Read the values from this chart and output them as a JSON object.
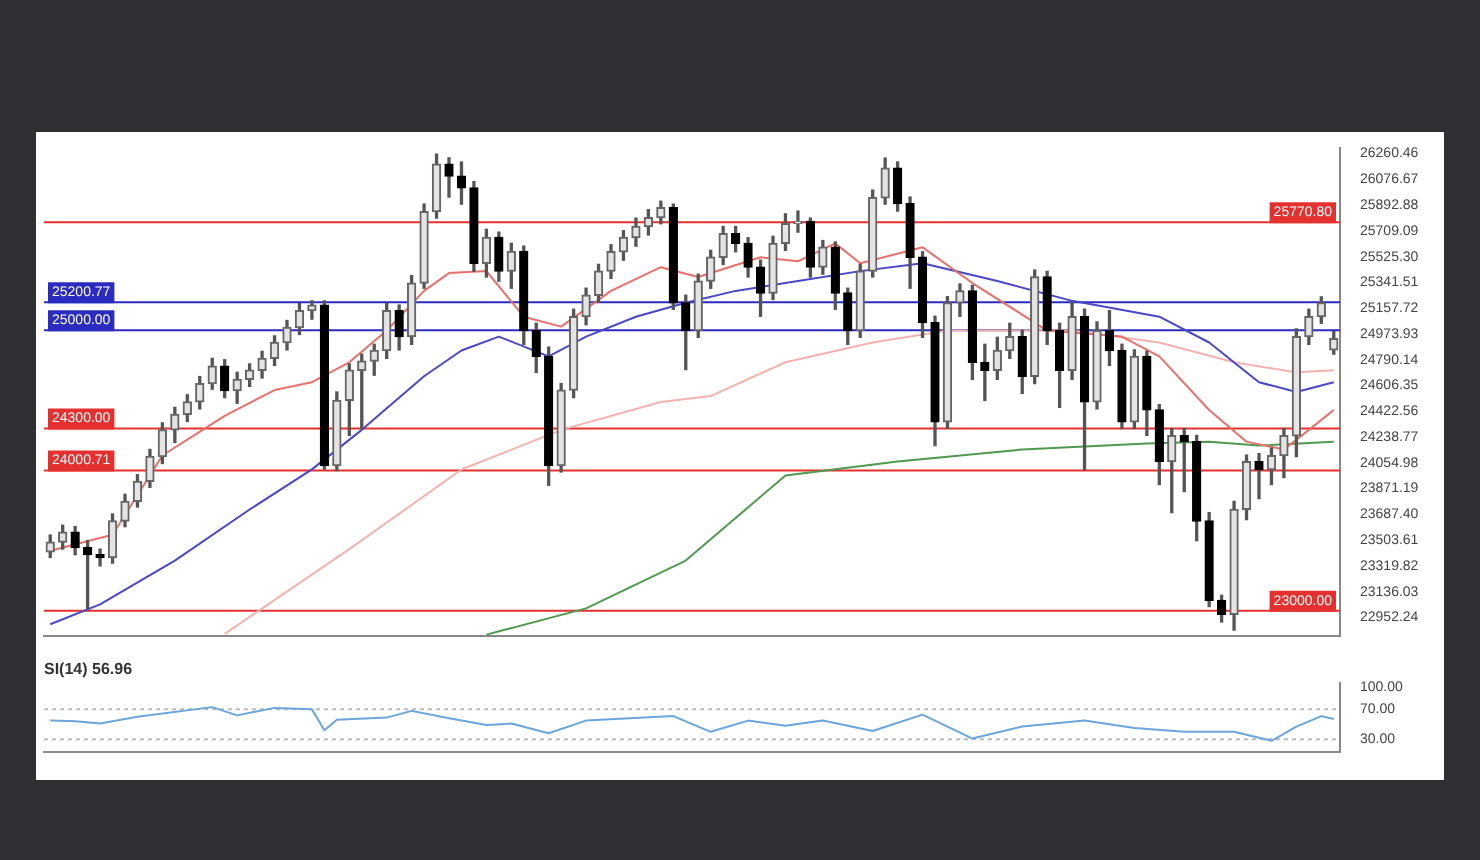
{
  "chart_data": [
    {
      "type": "candlestick",
      "categories": [
        null,
        null,
        null,
        null,
        null,
        null,
        null,
        null,
        null,
        null,
        null,
        null,
        null,
        null,
        null,
        null,
        null,
        null,
        null,
        null,
        null,
        null,
        null,
        null,
        null,
        null,
        null,
        null,
        null,
        null,
        null,
        null,
        null,
        null,
        null,
        null,
        null,
        null,
        null,
        null,
        null,
        null,
        null,
        null,
        null,
        null,
        null,
        null,
        null,
        null,
        null,
        null,
        null,
        null,
        null,
        null,
        null,
        null,
        null,
        null,
        null,
        null,
        null,
        null,
        null,
        null,
        null,
        null,
        null,
        null,
        null,
        null,
        null,
        null,
        null,
        null,
        null,
        null,
        null,
        null,
        null,
        null,
        null,
        null,
        null,
        null,
        null,
        null,
        null,
        null,
        null,
        null,
        null,
        null,
        null,
        null,
        null,
        null,
        null,
        null,
        null,
        null,
        null,
        null
      ],
      "ohlc": [
        [
          23420,
          23540,
          23380,
          23490
        ],
        [
          23490,
          23610,
          23440,
          23560
        ],
        [
          23560,
          23600,
          23400,
          23450
        ],
        [
          23450,
          23500,
          23017,
          23400
        ],
        [
          23400,
          23440,
          23320,
          23380
        ],
        [
          23380,
          23690,
          23340,
          23640
        ],
        [
          23640,
          23830,
          23600,
          23780
        ],
        [
          23780,
          23970,
          23740,
          23923
        ],
        [
          23923,
          24150,
          23880,
          24100
        ],
        [
          24100,
          24340,
          24050,
          24290
        ],
        [
          24290,
          24450,
          24200,
          24400
        ],
        [
          24400,
          24540,
          24350,
          24490
        ],
        [
          24490,
          24670,
          24440,
          24620
        ],
        [
          24620,
          24800,
          24580,
          24745
        ],
        [
          24745,
          24790,
          24520,
          24570
        ],
        [
          24570,
          24700,
          24480,
          24650
        ],
        [
          24650,
          24760,
          24600,
          24715
        ],
        [
          24715,
          24850,
          24660,
          24800
        ],
        [
          24800,
          24960,
          24750,
          24913
        ],
        [
          24913,
          25070,
          24860,
          25020
        ],
        [
          25020,
          25190,
          24970,
          25140
        ],
        [
          25140,
          25210,
          25080,
          25180
        ],
        [
          25180,
          25210,
          24010,
          24036
        ],
        [
          24036,
          24560,
          24000,
          24500
        ],
        [
          24500,
          24760,
          24250,
          24715
        ],
        [
          24715,
          24830,
          24300,
          24780
        ],
        [
          24780,
          24900,
          24680,
          24856
        ],
        [
          24856,
          25190,
          24800,
          25140
        ],
        [
          25140,
          25180,
          24860,
          24955
        ],
        [
          24955,
          25390,
          24900,
          25337
        ],
        [
          25337,
          25900,
          25300,
          25846
        ],
        [
          25846,
          26256,
          25800,
          26185
        ],
        [
          26185,
          26230,
          25950,
          26100
        ],
        [
          26100,
          26200,
          25900,
          26016
        ],
        [
          26016,
          26060,
          25420,
          25478
        ],
        [
          25478,
          25720,
          25380,
          25662
        ],
        [
          25662,
          25700,
          25350,
          25422
        ],
        [
          25422,
          25620,
          25300,
          25563
        ],
        [
          25563,
          25600,
          24900,
          24998
        ],
        [
          24998,
          25050,
          24700,
          24814
        ],
        [
          24814,
          24880,
          23895,
          24036
        ],
        [
          24036,
          24620,
          23990,
          24574
        ],
        [
          24574,
          25150,
          24520,
          25097
        ],
        [
          25097,
          25300,
          25040,
          25250
        ],
        [
          25250,
          25470,
          25200,
          25422
        ],
        [
          25422,
          25610,
          25370,
          25560
        ],
        [
          25560,
          25710,
          25500,
          25662
        ],
        [
          25662,
          25800,
          25600,
          25740
        ],
        [
          25740,
          25860,
          25680,
          25804
        ],
        [
          25804,
          25920,
          25760,
          25875
        ],
        [
          25875,
          25900,
          25150,
          25196
        ],
        [
          25196,
          25250,
          24720,
          24998
        ],
        [
          24998,
          25400,
          24950,
          25351
        ],
        [
          25351,
          25570,
          25300,
          25521
        ],
        [
          25521,
          25740,
          25470,
          25690
        ],
        [
          25690,
          25740,
          25560,
          25620
        ],
        [
          25620,
          25660,
          25380,
          25450
        ],
        [
          25450,
          25500,
          25100,
          25266
        ],
        [
          25266,
          25670,
          25220,
          25620
        ],
        [
          25620,
          25830,
          25570,
          25761
        ],
        [
          25761,
          25850,
          25700,
          25776
        ],
        [
          25776,
          25800,
          25380,
          25450
        ],
        [
          25450,
          25640,
          25400,
          25592
        ],
        [
          25592,
          25630,
          25150,
          25266
        ],
        [
          25266,
          25300,
          24900,
          24998
        ],
        [
          24998,
          25470,
          24950,
          25422
        ],
        [
          25422,
          26000,
          25380,
          25945
        ],
        [
          25945,
          26228,
          25900,
          26157
        ],
        [
          26157,
          26200,
          25850,
          25903
        ],
        [
          25903,
          25950,
          25300,
          25521
        ],
        [
          25521,
          25560,
          24950,
          25055
        ],
        [
          25055,
          25100,
          24178,
          24347
        ],
        [
          24347,
          25240,
          24300,
          25196
        ],
        [
          25196,
          25330,
          25100,
          25281
        ],
        [
          25281,
          25320,
          24650,
          24771
        ],
        [
          24771,
          24900,
          24500,
          24715
        ],
        [
          24715,
          24950,
          24650,
          24856
        ],
        [
          24856,
          25050,
          24800,
          24955
        ],
        [
          24955,
          25000,
          24550,
          24672
        ],
        [
          24672,
          25430,
          24620,
          25380
        ],
        [
          25380,
          25420,
          24900,
          24998
        ],
        [
          24998,
          25050,
          24450,
          24715
        ],
        [
          24715,
          25200,
          24650,
          25097
        ],
        [
          25097,
          25150,
          24007,
          24489
        ],
        [
          24489,
          25060,
          24440,
          24998
        ],
        [
          24998,
          25140,
          24750,
          24856
        ],
        [
          24856,
          24900,
          24300,
          24347
        ],
        [
          24347,
          24860,
          24300,
          24814
        ],
        [
          24814,
          24850,
          24250,
          24432
        ],
        [
          24432,
          24470,
          23900,
          24064
        ],
        [
          24064,
          24300,
          23700,
          24248
        ],
        [
          24248,
          24300,
          23850,
          24206
        ],
        [
          24206,
          24250,
          23500,
          23640
        ],
        [
          23640,
          23700,
          23030,
          23074
        ],
        [
          23074,
          23110,
          22920,
          22975
        ],
        [
          22975,
          23780,
          22862,
          23723
        ],
        [
          23723,
          24110,
          23650,
          24064
        ],
        [
          24064,
          24120,
          23800,
          24007
        ],
        [
          24007,
          24160,
          23900,
          24106
        ],
        [
          24106,
          24300,
          23950,
          24248
        ],
        [
          24248,
          25010,
          24100,
          24955
        ],
        [
          24955,
          25150,
          24900,
          25097
        ],
        [
          25097,
          25238,
          25050,
          25196
        ],
        [
          24860,
          24990,
          24830,
          24940
        ]
      ],
      "series": [
        {
          "type": "line",
          "color": "#e8706a",
          "values": [
            23428,
            null,
            null,
            null,
            null,
            23542,
            null,
            null,
            null,
            24107,
            null,
            null,
            null,
            null,
            24390,
            null,
            null,
            null,
            24574,
            null,
            null,
            24630,
            null,
            null,
            24772,
            null,
            null,
            24998,
            null,
            null,
            25281,
            null,
            25408,
            null,
            null,
            25422,
            null,
            null,
            25097,
            null,
            null,
            25026,
            null,
            null,
            null,
            25281,
            null,
            null,
            null,
            25450,
            null,
            null,
            25380,
            null,
            null,
            null,
            null,
            25521,
            null,
            null,
            25492,
            null,
            null,
            25620,
            null,
            25478,
            null,
            null,
            null,
            null,
            25592,
            null,
            null,
            null,
            25337,
            null,
            null,
            null,
            null,
            null,
            24998,
            null,
            null,
            null,
            null,
            null,
            24955,
            null,
            null,
            24814,
            null,
            null,
            null,
            24432,
            null,
            null,
            24206,
            null,
            null,
            24150,
            null,
            24290,
            null,
            24432
          ]
        },
        {
          "type": "line",
          "color": "#4848c8",
          "values": [
            22904,
            null,
            null,
            null,
            23046,
            null,
            null,
            null,
            null,
            null,
            23358,
            null,
            null,
            null,
            null,
            null,
            23722,
            null,
            null,
            null,
            null,
            24008,
            null,
            null,
            null,
            24290,
            null,
            null,
            null,
            null,
            24672,
            null,
            null,
            24856,
            null,
            null,
            24955,
            null,
            null,
            null,
            24814,
            null,
            null,
            24955,
            null,
            null,
            null,
            25097,
            null,
            null,
            null,
            25196,
            null,
            null,
            null,
            25281,
            null,
            null,
            null,
            null,
            25351,
            null,
            null,
            null,
            null,
            25422,
            null,
            null,
            null,
            null,
            25478,
            null,
            null,
            null,
            null,
            null,
            25351,
            null,
            null,
            null,
            null,
            null,
            25210,
            null,
            null,
            null,
            null,
            null,
            null,
            25097,
            null,
            null,
            null,
            24913,
            null,
            null,
            null,
            24630,
            null,
            null,
            24560,
            null,
            null,
            24630
          ]
        },
        {
          "type": "line",
          "color": "#f2b3ad",
          "values": [
            null,
            null,
            null,
            null,
            null,
            null,
            null,
            null,
            null,
            null,
            null,
            null,
            null,
            null,
            22835,
            null,
            null,
            null,
            null,
            null,
            null,
            null,
            null,
            null,
            23440,
            null,
            null,
            null,
            null,
            null,
            null,
            null,
            null,
            24007,
            null,
            null,
            null,
            null,
            null,
            null,
            null,
            24290,
            null,
            null,
            null,
            null,
            null,
            null,
            null,
            24489,
            null,
            null,
            null,
            24531,
            null,
            null,
            null,
            null,
            null,
            24772,
            null,
            null,
            null,
            null,
            null,
            null,
            24913,
            null,
            null,
            null,
            null,
            null,
            24998,
            null,
            null,
            null,
            null,
            null,
            null,
            null,
            null,
            null,
            24998,
            null,
            null,
            null,
            null,
            null,
            null,
            24913,
            null,
            null,
            null,
            null,
            null,
            24772,
            null,
            null,
            null,
            null,
            24700,
            null,
            null,
            24715
          ]
        },
        {
          "type": "line",
          "color": "#4f9a4f",
          "values": [
            null,
            null,
            null,
            null,
            null,
            null,
            null,
            null,
            null,
            null,
            null,
            null,
            null,
            null,
            null,
            null,
            null,
            null,
            null,
            null,
            null,
            null,
            null,
            null,
            null,
            null,
            null,
            null,
            null,
            null,
            null,
            null,
            null,
            null,
            null,
            22830,
            null,
            null,
            null,
            null,
            null,
            null,
            null,
            23017,
            null,
            null,
            null,
            null,
            null,
            null,
            null,
            23358,
            null,
            null,
            null,
            null,
            null,
            null,
            null,
            23965,
            null,
            null,
            null,
            null,
            null,
            null,
            null,
            null,
            24064,
            null,
            null,
            null,
            null,
            null,
            null,
            null,
            null,
            null,
            24150,
            null,
            null,
            null,
            null,
            null,
            null,
            null,
            null,
            null,
            24192,
            null,
            null,
            null,
            null,
            24206,
            null,
            null,
            null,
            24178,
            null,
            null,
            null,
            null,
            null,
            24206
          ]
        }
      ],
      "ylim": [
        22820,
        26300
      ],
      "yticks": [
        26260.46,
        26076.67,
        25892.88,
        25709.09,
        {
          "value": 25525.3,
          "label": "25525.30"
        },
        25341.51,
        25157.72,
        24973.93,
        24790.14,
        24606.35,
        24422.56,
        24238.77,
        24054.98,
        23871.19,
        {
          "value": 23687.4,
          "label": "23687.40"
        },
        23503.61,
        23319.82,
        23136.03,
        22952.24
      ],
      "ref_lines": [
        {
          "axis": "y",
          "value": 25770.8,
          "label": "25770.80",
          "color": "#e53030"
        },
        {
          "axis": "y",
          "value": 25200.77,
          "label": "25200.77",
          "color": "#2b2bc0"
        },
        {
          "axis": "y",
          "value": 25000,
          "label": "25000.00",
          "color": "#2b2bc0"
        },
        {
          "axis": "y",
          "value": 24300,
          "label": "24300.00",
          "color": "#e53030"
        },
        {
          "axis": "y",
          "value": 24000.71,
          "label": "24000.71",
          "color": "#e53030"
        },
        {
          "axis": "y",
          "value": 23000,
          "label": "23000.00",
          "color": "#e53030"
        }
      ],
      "tick_labels": "y",
      "grid": false,
      "legend": false,
      "marker": "none"
    },
    {
      "type": "line",
      "title": "SI(14) 56.96",
      "categories": [
        null,
        null,
        null,
        null,
        null,
        null,
        null,
        null,
        null,
        null,
        null,
        null,
        null,
        null,
        null,
        null,
        null,
        null,
        null,
        null,
        null,
        null,
        null,
        null,
        null,
        null,
        null,
        null,
        null,
        null,
        null,
        null,
        null,
        null,
        null,
        null,
        null,
        null,
        null,
        null,
        null,
        null,
        null,
        null,
        null,
        null,
        null,
        null,
        null,
        null,
        null,
        null,
        null,
        null,
        null,
        null,
        null,
        null,
        null,
        null,
        null,
        null,
        null,
        null,
        null,
        null,
        null,
        null,
        null,
        null,
        null,
        null,
        null,
        null,
        null,
        null,
        null,
        null,
        null,
        null,
        null,
        null,
        null,
        null,
        null,
        null,
        null,
        null,
        null,
        null,
        null,
        null,
        null,
        null,
        null,
        null,
        null,
        null,
        null,
        null,
        null,
        null,
        null,
        null
      ],
      "series": [
        {
          "color": "#6aa6dc",
          "values": [
            55,
            null,
            54,
            null,
            51,
            null,
            null,
            60,
            null,
            null,
            null,
            null,
            null,
            73,
            null,
            62,
            null,
            null,
            72,
            null,
            null,
            70,
            42,
            56,
            null,
            null,
            null,
            59,
            null,
            68,
            null,
            null,
            58,
            null,
            null,
            49,
            null,
            51,
            null,
            null,
            38,
            null,
            null,
            55,
            null,
            null,
            null,
            null,
            null,
            null,
            61,
            null,
            null,
            40,
            null,
            null,
            55,
            null,
            null,
            48,
            null,
            null,
            55,
            null,
            null,
            null,
            41,
            null,
            null,
            null,
            63,
            null,
            null,
            null,
            31,
            null,
            null,
            null,
            47,
            null,
            null,
            null,
            null,
            55,
            null,
            null,
            null,
            45,
            null,
            null,
            null,
            40,
            null,
            null,
            null,
            40,
            null,
            null,
            28,
            null,
            47,
            null,
            61,
            57
          ]
        }
      ],
      "ylim": [
        13,
        105
      ],
      "yticks": [
        {
          "value": 100,
          "label": "100.00"
        },
        {
          "value": 70,
          "label": "70.00"
        },
        {
          "value": 30,
          "label": "30.00"
        }
      ],
      "ref_lines": [
        {
          "axis": "y",
          "value": 70,
          "color": "#bbbbbb",
          "line_style": "dotted"
        },
        {
          "axis": "y",
          "value": 30,
          "color": "#bbbbbb",
          "line_style": "dotted"
        }
      ],
      "tick_labels": "y",
      "grid": false,
      "legend": false,
      "marker": "none"
    }
  ]
}
